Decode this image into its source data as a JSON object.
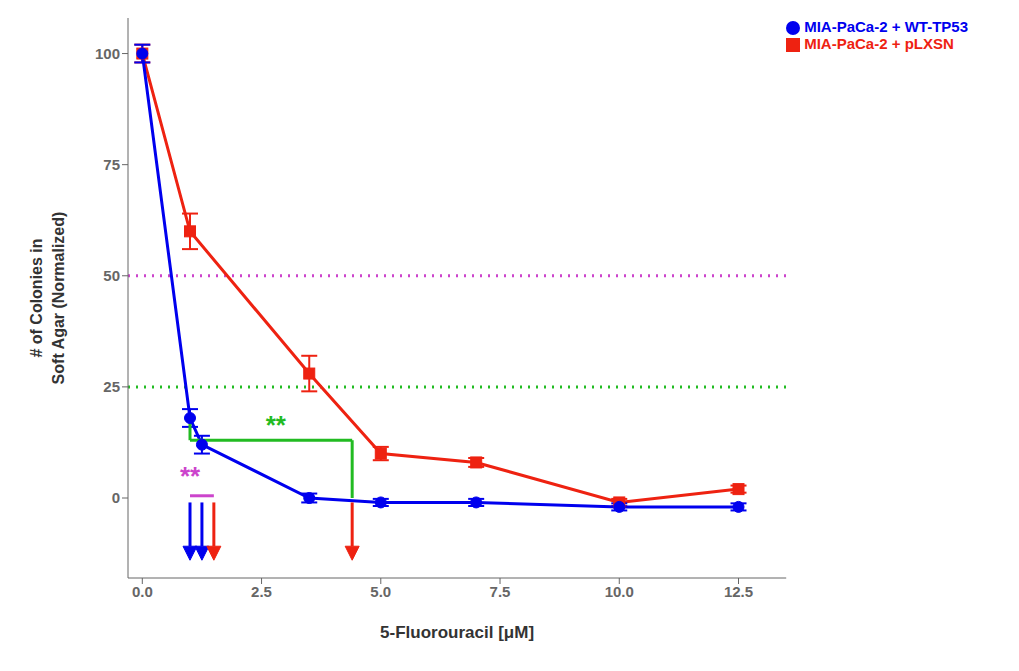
{
  "chart_data": {
    "type": "line",
    "xlabel": "5-Fluorouracil [μM]",
    "ylabel": "# of Colonies in\nSoft Agar (Normalized)",
    "xlim": [
      -0.3,
      13.5
    ],
    "ylim": [
      -18,
      108
    ],
    "xticks": [
      {
        "value": 0,
        "label": "0.0"
      },
      2.5,
      {
        "value": 5,
        "label": "5.0"
      },
      7.5,
      {
        "value": 10,
        "label": "10.0"
      },
      12.5
    ],
    "yticks": [
      0,
      25,
      50,
      75,
      100
    ],
    "grid": false,
    "legend": "upper right",
    "series": [
      {
        "name": "MIA-PaCa-2 + pLXSN",
        "color": "#EE2211",
        "marker": "square",
        "x": [
          0,
          1.0,
          3.5,
          5.0,
          7.0,
          10.0,
          12.5
        ],
        "values": [
          100,
          60,
          28,
          10,
          8,
          -1,
          2
        ],
        "errors": [
          2,
          4,
          4,
          1.5,
          1,
          0.8,
          0.8
        ]
      },
      {
        "name": "MIA-PaCa-2 + WT-TP53",
        "color": "#0000EE",
        "marker": "circle",
        "x": [
          0,
          1.0,
          1.25,
          3.5,
          5.0,
          7.0,
          10.0,
          12.5
        ],
        "values": [
          100,
          18,
          12,
          0,
          -1,
          -1,
          -2,
          -2
        ],
        "errors": [
          2,
          2,
          2,
          1,
          0.8,
          0.8,
          0.8,
          0.8
        ]
      }
    ],
    "reference_lines": [
      {
        "y": 50,
        "color": "#CC44CC",
        "line_style": "dotted"
      },
      {
        "y": 25,
        "color": "#22BB22",
        "line_style": "dotted"
      }
    ],
    "brackets": [
      {
        "color": "#22BB22",
        "points": [
          [
            1.0,
            18
          ],
          [
            1.0,
            13
          ],
          [
            4.4,
            13
          ],
          [
            4.4,
            0
          ]
        ]
      },
      {
        "color": "#CC44CC",
        "points": [
          [
            1.0,
            0.5
          ],
          [
            1.5,
            0.5
          ]
        ]
      }
    ],
    "annotations": [
      {
        "text": "**",
        "x": 2.8,
        "y": 14.5,
        "color": "#22BB22"
      },
      {
        "text": "**",
        "x": 1.0,
        "y": 3.0,
        "color": "#CC44CC"
      }
    ],
    "arrows": [
      {
        "x": 1.0,
        "y_from": -1,
        "y_to": -14,
        "color": "#0000EE"
      },
      {
        "x": 1.25,
        "y_from": -1,
        "y_to": -14,
        "color": "#0000EE"
      },
      {
        "x": 1.5,
        "y_from": -1,
        "y_to": -14,
        "color": "#EE2211"
      },
      {
        "x": 4.4,
        "y_from": -1,
        "y_to": -14,
        "color": "#EE2211"
      }
    ]
  }
}
